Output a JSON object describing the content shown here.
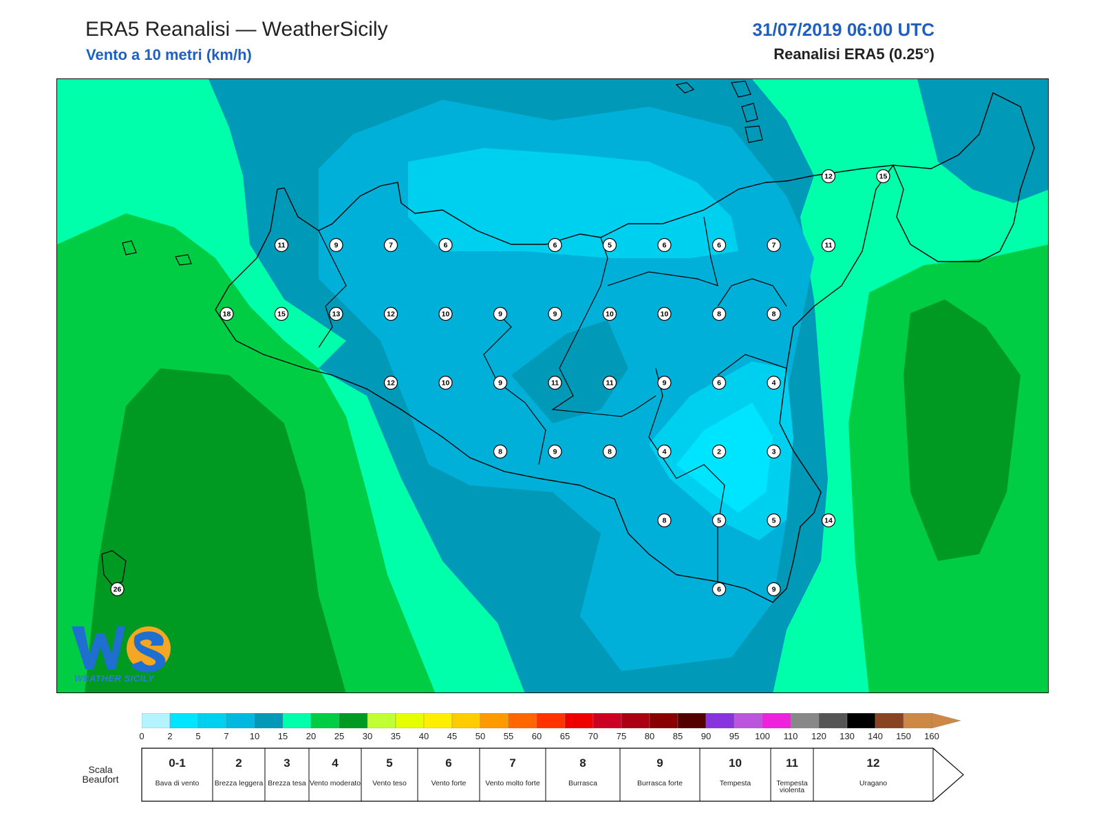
{
  "header": {
    "title": "ERA5 Reanalisi — WeatherSicily",
    "subtitle": "Vento a 10 metri (km/h)",
    "datetime": "31/07/2019 06:00 UTC",
    "model": "Reanalisi ERA5 (0.25°)"
  },
  "stations": [
    {
      "value": "12",
      "col": 14,
      "row": 0
    },
    {
      "value": "15",
      "col": 15,
      "row": 0
    },
    {
      "value": "11",
      "col": 4,
      "row": 1
    },
    {
      "value": "9",
      "col": 5,
      "row": 1
    },
    {
      "value": "7",
      "col": 6,
      "row": 1
    },
    {
      "value": "6",
      "col": 7,
      "row": 1
    },
    {
      "value": "6",
      "col": 9,
      "row": 1
    },
    {
      "value": "5",
      "col": 10,
      "row": 1
    },
    {
      "value": "6",
      "col": 11,
      "row": 1
    },
    {
      "value": "6",
      "col": 12,
      "row": 1
    },
    {
      "value": "7",
      "col": 13,
      "row": 1
    },
    {
      "value": "11",
      "col": 14,
      "row": 1
    },
    {
      "value": "18",
      "col": 3,
      "row": 2
    },
    {
      "value": "15",
      "col": 4,
      "row": 2
    },
    {
      "value": "13",
      "col": 5,
      "row": 2
    },
    {
      "value": "12",
      "col": 6,
      "row": 2
    },
    {
      "value": "10",
      "col": 7,
      "row": 2
    },
    {
      "value": "9",
      "col": 8,
      "row": 2
    },
    {
      "value": "9",
      "col": 9,
      "row": 2
    },
    {
      "value": "10",
      "col": 10,
      "row": 2
    },
    {
      "value": "10",
      "col": 11,
      "row": 2
    },
    {
      "value": "8",
      "col": 12,
      "row": 2
    },
    {
      "value": "8",
      "col": 13,
      "row": 2
    },
    {
      "value": "12",
      "col": 6,
      "row": 3
    },
    {
      "value": "10",
      "col": 7,
      "row": 3
    },
    {
      "value": "9",
      "col": 8,
      "row": 3
    },
    {
      "value": "11",
      "col": 9,
      "row": 3
    },
    {
      "value": "11",
      "col": 10,
      "row": 3
    },
    {
      "value": "9",
      "col": 11,
      "row": 3
    },
    {
      "value": "6",
      "col": 12,
      "row": 3
    },
    {
      "value": "4",
      "col": 13,
      "row": 3
    },
    {
      "value": "8",
      "col": 8,
      "row": 4
    },
    {
      "value": "9",
      "col": 9,
      "row": 4
    },
    {
      "value": "8",
      "col": 10,
      "row": 4
    },
    {
      "value": "4",
      "col": 11,
      "row": 4
    },
    {
      "value": "2",
      "col": 12,
      "row": 4
    },
    {
      "value": "3",
      "col": 13,
      "row": 4
    },
    {
      "value": "8",
      "col": 11,
      "row": 5
    },
    {
      "value": "5",
      "col": 12,
      "row": 5
    },
    {
      "value": "5",
      "col": 13,
      "row": 5
    },
    {
      "value": "14",
      "col": 14,
      "row": 5
    },
    {
      "value": "6",
      "col": 12,
      "row": 6
    },
    {
      "value": "9",
      "col": 13,
      "row": 6
    },
    {
      "value": "26",
      "col": 1,
      "row": 6
    }
  ],
  "logo": {
    "text": "WEATHER SICILY",
    "icon": "weathersicily-logo-icon"
  },
  "colorbar": {
    "ticks": [
      "0",
      "2",
      "5",
      "7",
      "10",
      "15",
      "20",
      "25",
      "30",
      "35",
      "40",
      "45",
      "50",
      "55",
      "60",
      "65",
      "70",
      "75",
      "80",
      "85",
      "90",
      "95",
      "100",
      "110",
      "120",
      "130",
      "140",
      "150",
      "160"
    ],
    "colors": [
      "#b3f4ff",
      "#00e5ff",
      "#00d0f0",
      "#00b8e0",
      "#0099b8",
      "#00ffaa",
      "#00cc44",
      "#009922",
      "#bfff33",
      "#e5ff00",
      "#ffee00",
      "#ffcc00",
      "#ff9900",
      "#ff6600",
      "#ff3300",
      "#ee0000",
      "#cc0022",
      "#aa0011",
      "#880000",
      "#550000",
      "#8833dd",
      "#bb55dd",
      "#ee22dd",
      "#888888",
      "#555555",
      "#000000",
      "#884422",
      "#cc8844"
    ]
  },
  "beaufort": {
    "label": "Scala Beaufort",
    "cells": [
      {
        "num": "0-1",
        "desc": "Bava di vento"
      },
      {
        "num": "2",
        "desc": "Brezza leggera"
      },
      {
        "num": "3",
        "desc": "Brezza tesa"
      },
      {
        "num": "4",
        "desc": "Vento moderato"
      },
      {
        "num": "5",
        "desc": "Vento teso"
      },
      {
        "num": "6",
        "desc": "Vento forte"
      },
      {
        "num": "7",
        "desc": "Vento molto forte"
      },
      {
        "num": "8",
        "desc": "Burrasca"
      },
      {
        "num": "9",
        "desc": "Burrasca forte"
      },
      {
        "num": "10",
        "desc": "Tempesta"
      },
      {
        "num": "11",
        "desc": "Tempesta violenta"
      },
      {
        "num": "12",
        "desc": "Uragano"
      }
    ]
  }
}
